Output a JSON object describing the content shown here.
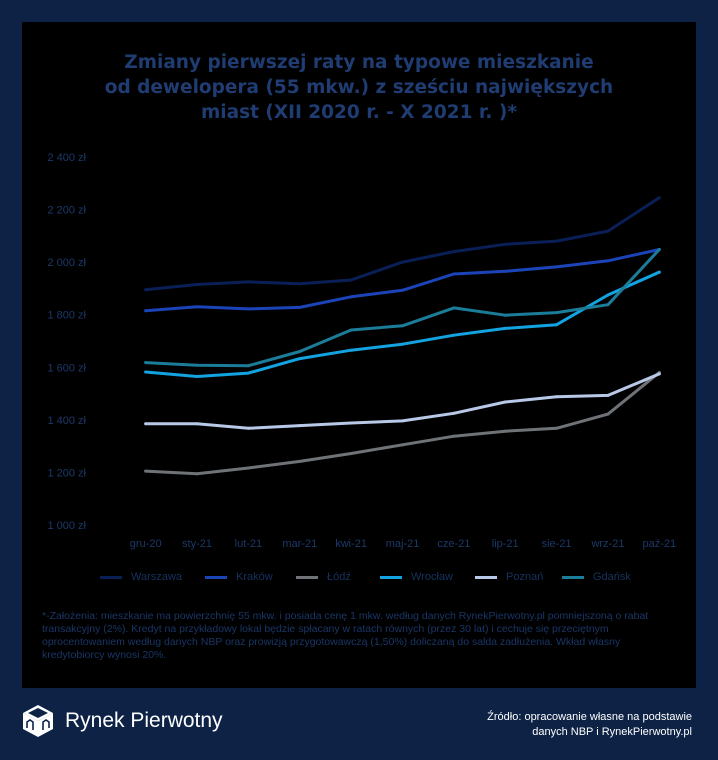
{
  "title_lines": [
    "Zmiany pierwszej raty na typowe mieszkanie",
    "od dewelopera (55 mkw.) z sześciu największych",
    "miast (XII 2020 r. - X 2021 r. )*"
  ],
  "footnote": "*-Założenia: mieszkanie ma powierzchnię 55 mkw. i posiada cenę 1 mkw. według danych RynekPierwotny.pl pomniejszoną o rabat transakcyjny (2%). Kredyt na przykładowy lokal będzie spłacany w ratach równych (przez 30 lat) i cechuje się przeciętnym oprocentowaniem według danych NBP oraz prowizją przygotowawczą (1,50%) doliczaną do salda zadłużenia. Wkład własny kredytobiorcy wynosi 20%.",
  "logo_text": "Rynek Pierwotny",
  "source_lines": [
    "Źródło: opracowanie własne na podstawie",
    "danych NBP i RynekPierwotny.pl"
  ],
  "chart_data": {
    "type": "line",
    "title": "Zmiany pierwszej raty na typowe mieszkanie od dewelopera (55 mkw.) z sześciu największych miast (XII 2020 r. - X 2021 r. )*",
    "categories": [
      "gru-20",
      "sty-21",
      "lut-21",
      "mar-21",
      "kwi-21",
      "maj-21",
      "cze-21",
      "lip-21",
      "sie-21",
      "wrz-21",
      "paź-21"
    ],
    "ylim": [
      1000,
      2400
    ],
    "yticks": [
      1000,
      1200,
      1400,
      1600,
      1800,
      2000,
      2200,
      2400
    ],
    "ytick_labels": [
      "1 000 zł",
      "1 200 zł",
      "1 400 zł",
      "1 600 zł",
      "1 800 zł",
      "2 000 zł",
      "2 200 zł",
      "2 400 zł"
    ],
    "grid": false,
    "legend_position": "bottom",
    "series": [
      {
        "name": "Warszawa",
        "color": "#0b1f57",
        "values": [
          1895,
          1915,
          1925,
          1918,
          1932,
          2000,
          2040,
          2068,
          2080,
          2118,
          2245
        ]
      },
      {
        "name": "Kraków",
        "color": "#1a44b8",
        "values": [
          1815,
          1830,
          1822,
          1828,
          1868,
          1893,
          1955,
          1965,
          1982,
          2005,
          2048
        ]
      },
      {
        "name": "Łódź",
        "color": "#6f7378",
        "values": [
          1205,
          1195,
          1217,
          1242,
          1272,
          1305,
          1338,
          1357,
          1368,
          1422,
          1580
        ]
      },
      {
        "name": "Wrocław",
        "color": "#12a3e0",
        "values": [
          1582,
          1565,
          1578,
          1633,
          1665,
          1688,
          1722,
          1748,
          1762,
          1875,
          1962
        ]
      },
      {
        "name": "Poznań",
        "color": "#b7c9e6",
        "values": [
          1385,
          1385,
          1368,
          1378,
          1388,
          1396,
          1425,
          1468,
          1488,
          1493,
          1575
        ]
      },
      {
        "name": "Gdańsk",
        "color": "#1b7d99",
        "values": [
          1618,
          1608,
          1606,
          1660,
          1742,
          1758,
          1826,
          1798,
          1808,
          1838,
          2048
        ]
      }
    ]
  }
}
